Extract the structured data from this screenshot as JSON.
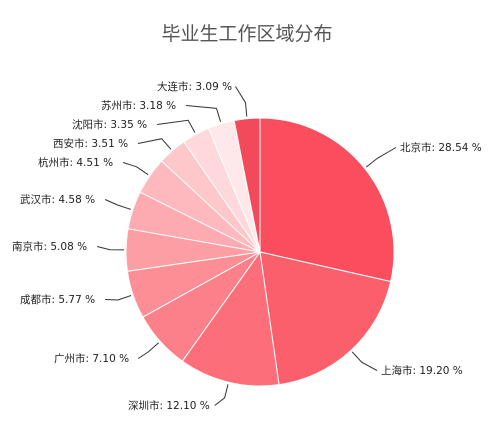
{
  "chart_data": {
    "type": "pie",
    "title": "毕业生工作区域分布",
    "slices": [
      {
        "label": "北京市: 28.54 %",
        "name": "北京市",
        "value": 28.54,
        "color": "#fa4d5e"
      },
      {
        "label": "上海市: 19.20 %",
        "name": "上海市",
        "value": 19.2,
        "color": "#fb5f6c"
      },
      {
        "label": "深圳市: 12.10 %",
        "name": "深圳市",
        "value": 12.1,
        "color": "#fc6f7a"
      },
      {
        "label": "广州市: 7.10 %",
        "name": "广州市",
        "value": 7.1,
        "color": "#fc8089"
      },
      {
        "label": "成都市: 5.77 %",
        "name": "成都市",
        "value": 5.77,
        "color": "#fd8e96"
      },
      {
        "label": "南京市: 5.08 %",
        "name": "南京市",
        "value": 5.08,
        "color": "#fd9da4"
      },
      {
        "label": "武汉市: 4.58 %",
        "name": "武汉市",
        "value": 4.58,
        "color": "#fdabb1"
      },
      {
        "label": "杭州市: 4.51 %",
        "name": "杭州市",
        "value": 4.51,
        "color": "#feb9be"
      },
      {
        "label": "西安市: 3.51 %",
        "name": "西安市",
        "value": 3.51,
        "color": "#fec8cb"
      },
      {
        "label": "沈阳市: 3.35 %",
        "name": "沈阳市",
        "value": 3.35,
        "color": "#fed8da"
      },
      {
        "label": "苏州市: 3.18 %",
        "name": "苏州市",
        "value": 3.18,
        "color": "#ffe8e9"
      },
      {
        "label": "大连市: 3.09 %",
        "name": "大连市",
        "value": 3.09,
        "color": "#f34a5b"
      }
    ],
    "start": "top",
    "direction": "clockwise",
    "legend": "none"
  }
}
